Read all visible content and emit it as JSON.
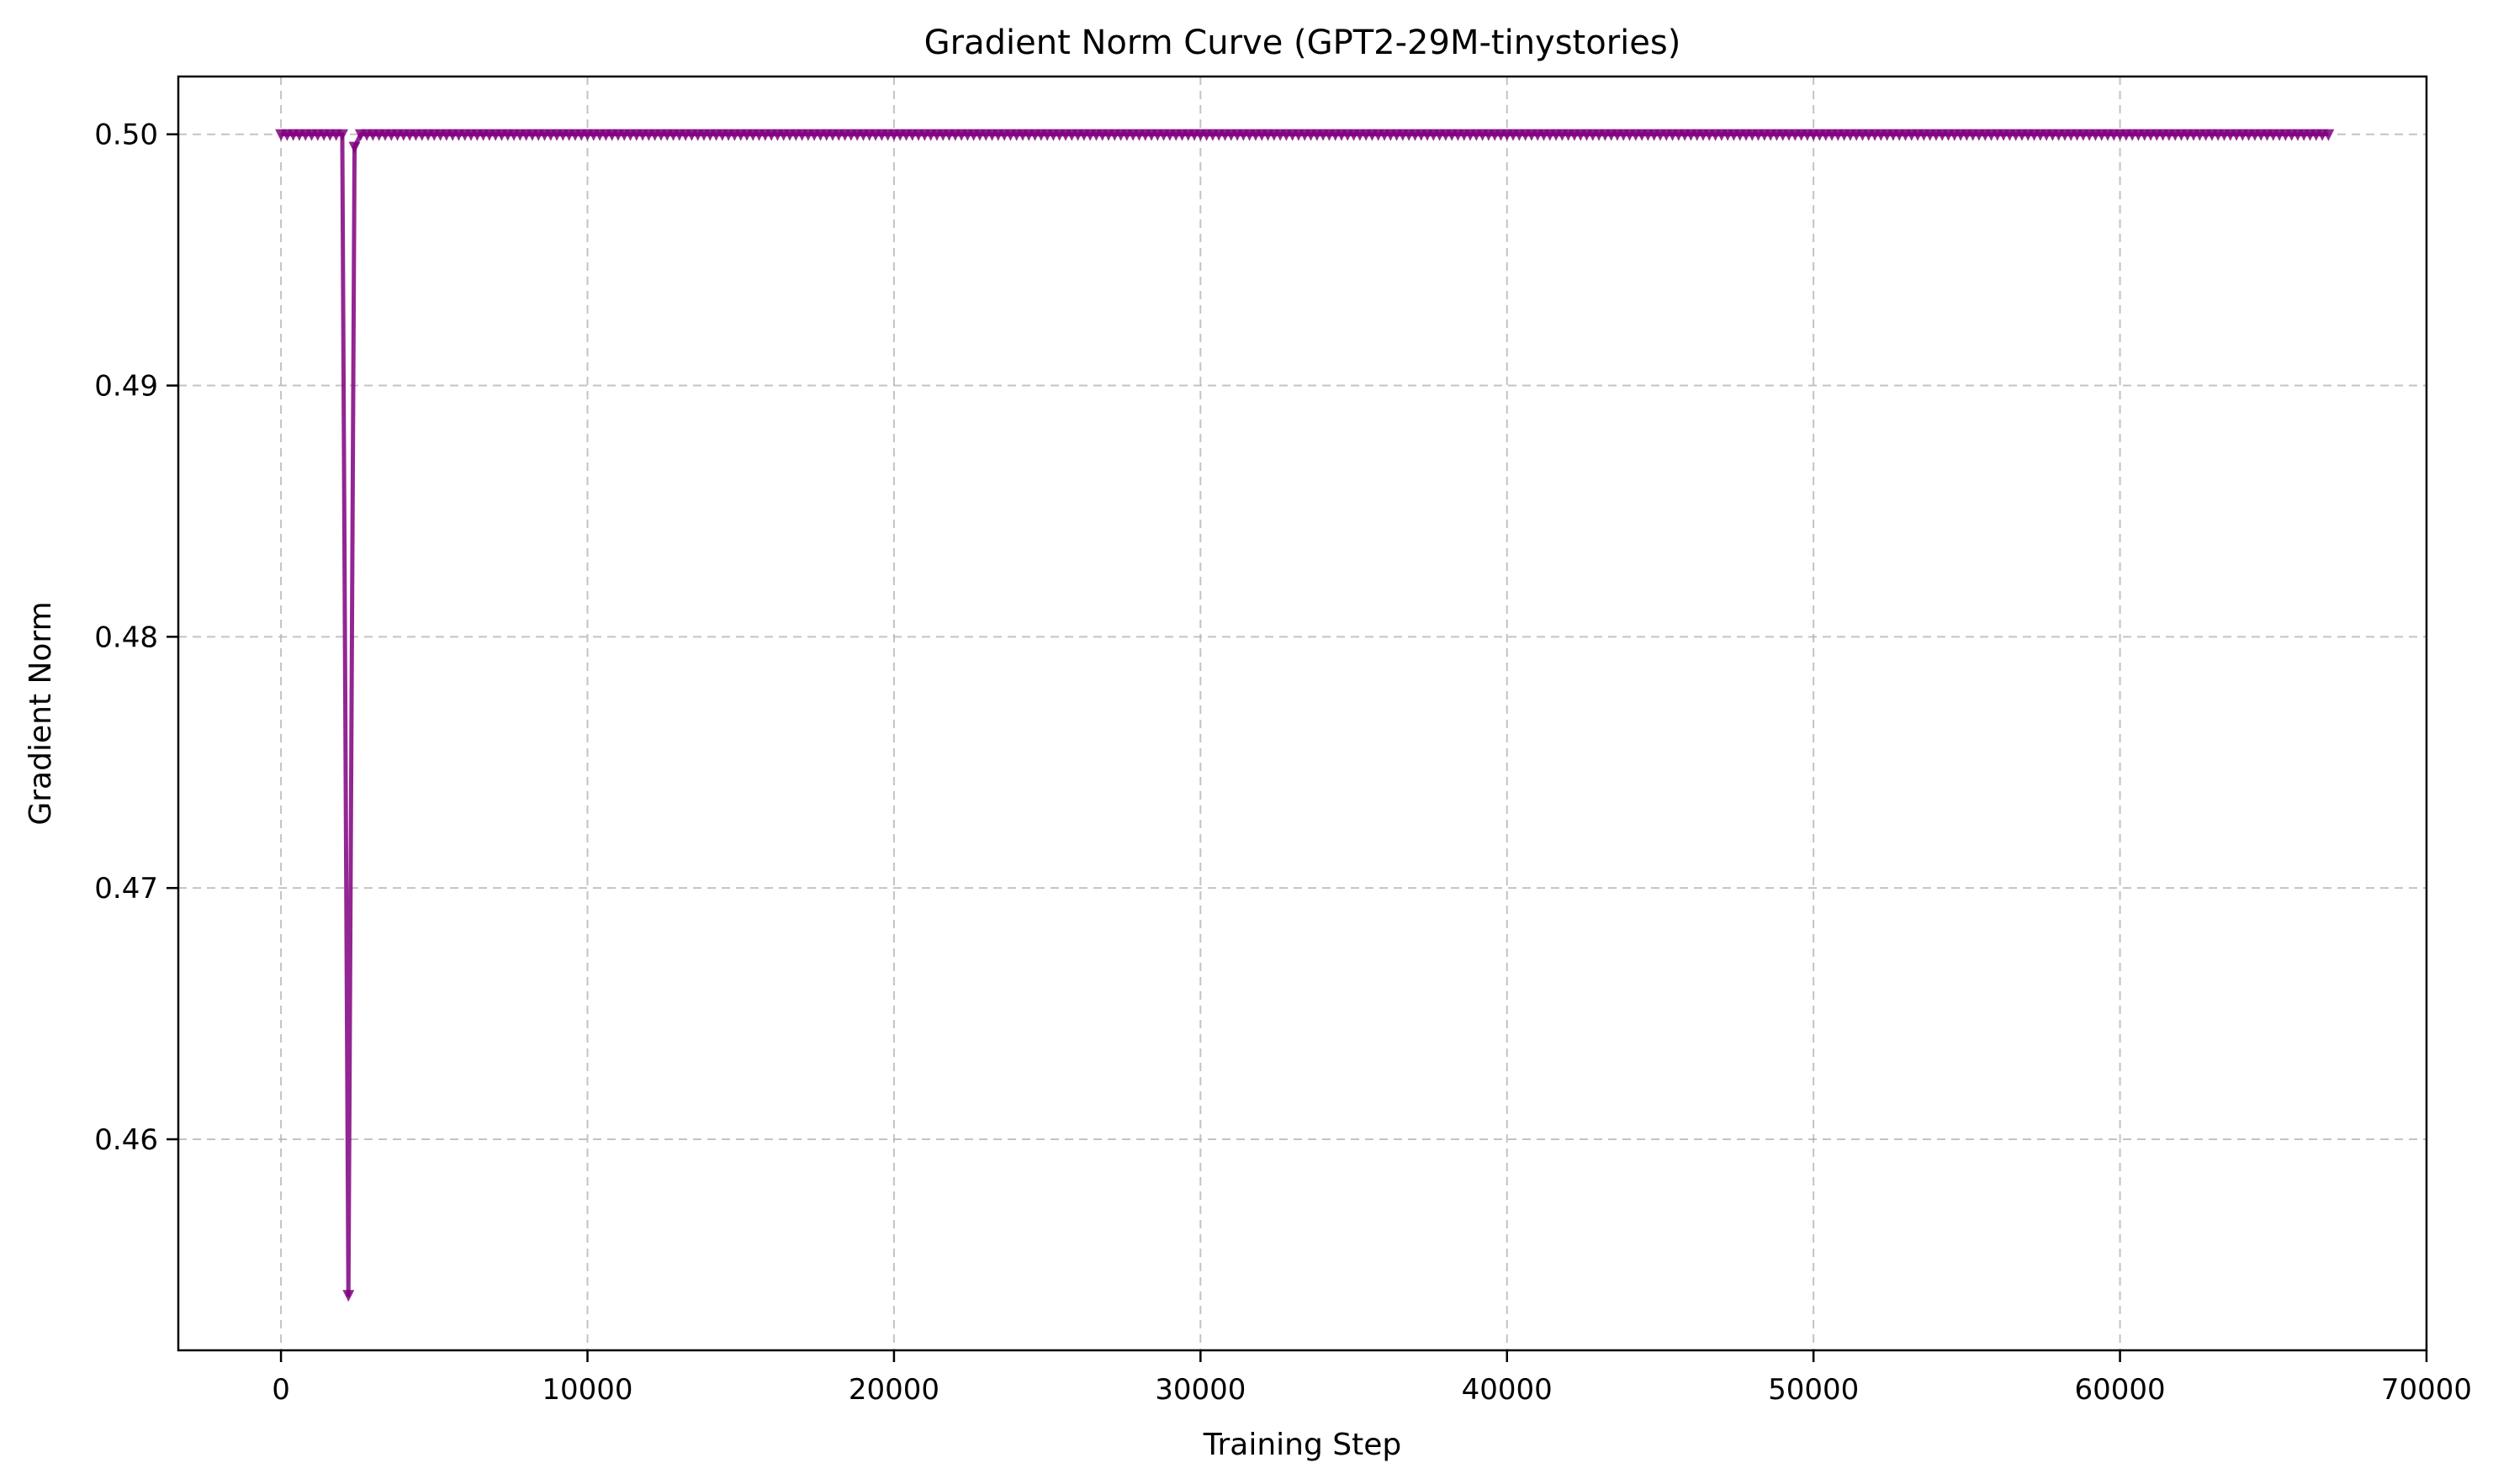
{
  "chart_data": {
    "type": "line",
    "title": "Gradient Norm Curve (GPT2-29M-tinystories)",
    "xlabel": "Training Step",
    "ylabel": "Gradient Norm",
    "xlim": [
      -3350,
      70000
    ],
    "ylim": [
      0.4516,
      0.5023
    ],
    "xticks": [
      0,
      10000,
      20000,
      30000,
      40000,
      50000,
      60000,
      70000
    ],
    "xtick_labels": [
      "0",
      "10000",
      "20000",
      "30000",
      "40000",
      "50000",
      "60000",
      "70000"
    ],
    "yticks": [
      0.46,
      0.47,
      0.48,
      0.49,
      0.5
    ],
    "ytick_labels": [
      "0.46",
      "0.47",
      "0.48",
      "0.49",
      "0.50"
    ],
    "grid": true,
    "marker": "triangle-down",
    "series": [
      {
        "color": "#800080",
        "x_start": 0,
        "x_step": 200,
        "x_end": 66800,
        "default_value": 0.5,
        "overrides": [
          {
            "x": 2200,
            "y": 0.4538
          },
          {
            "x": 2400,
            "y": 0.4995
          }
        ]
      }
    ]
  }
}
